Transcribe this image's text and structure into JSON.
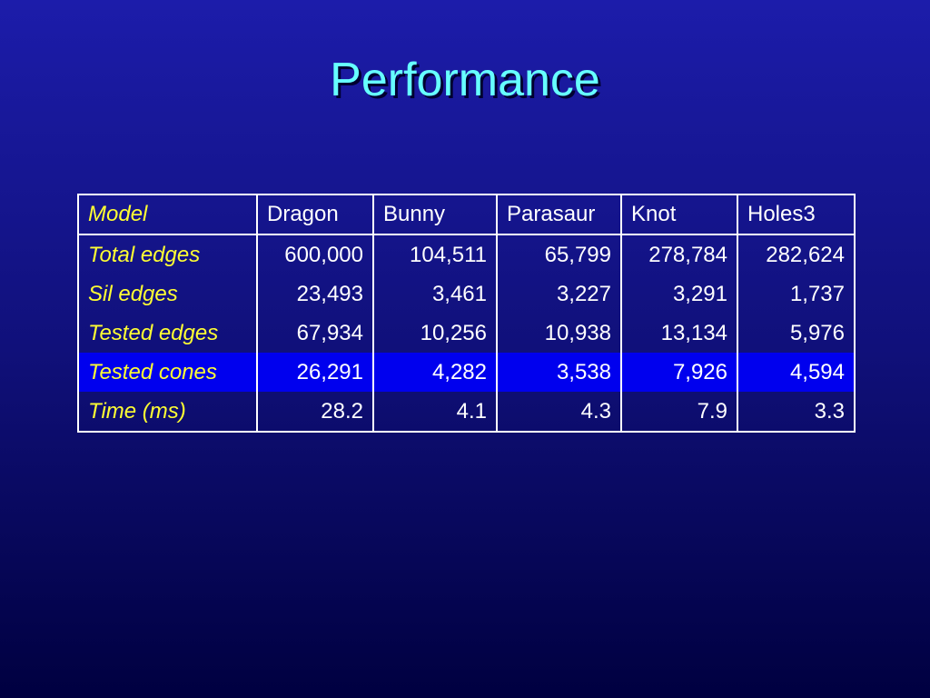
{
  "title": "Performance",
  "table": {
    "header": [
      "Model",
      "Dragon",
      "Bunny",
      "Parasaur",
      "Knot",
      "Holes3"
    ],
    "rows": [
      [
        "Total edges",
        "600,000",
        "104,511",
        "65,799",
        "278,784",
        "282,624"
      ],
      [
        "Sil edges",
        "23,493",
        "3,461",
        "3,227",
        "3,291",
        "1,737"
      ],
      [
        "Tested edges",
        "67,934",
        "10,256",
        "10,938",
        "13,134",
        "5,976"
      ],
      [
        "Tested cones",
        "26,291",
        "4,282",
        "3,538",
        "7,926",
        "4,594"
      ],
      [
        "Time (ms)",
        "28.2",
        "4.1",
        "4.3",
        "7.9",
        "3.3"
      ]
    ]
  }
}
